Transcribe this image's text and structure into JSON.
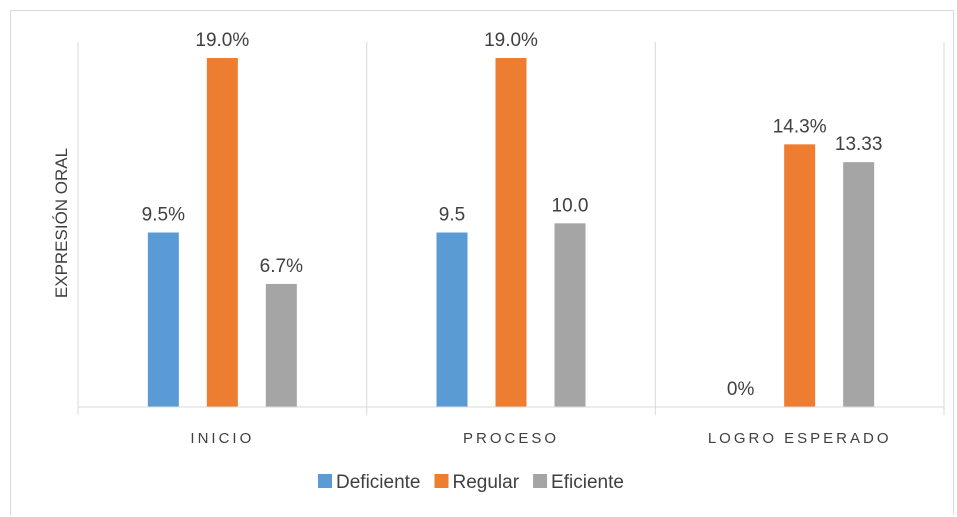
{
  "chart_data": {
    "type": "bar",
    "ylabel": "EXPRESIÓN ORAL",
    "categories": [
      "INICIO",
      "PROCESO",
      "LOGRO ESPERADO"
    ],
    "ylim": [
      0,
      20
    ],
    "grid": false,
    "legend_position": "bottom",
    "series": [
      {
        "name": "Deficiente",
        "color": "#5b9bd5",
        "values": [
          9.5,
          9.5,
          0
        ],
        "labels": [
          "9.5%",
          "9.5",
          "0%"
        ]
      },
      {
        "name": "Regular",
        "color": "#ed7d31",
        "values": [
          19.0,
          19.0,
          14.3
        ],
        "labels": [
          "19.0%",
          "19.0%",
          "14.3%"
        ]
      },
      {
        "name": "Eficiente",
        "color": "#a5a5a5",
        "values": [
          6.7,
          10.0,
          13.33
        ],
        "labels": [
          "6.7%",
          "10.0",
          "13.33"
        ]
      }
    ]
  }
}
